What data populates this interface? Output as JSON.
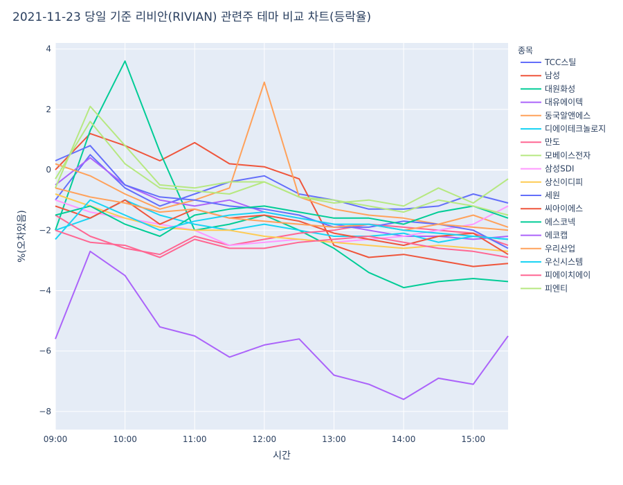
{
  "chart_data": {
    "type": "line",
    "title": "2021-11-23 당일 기준 리비안(RIVIAN) 관련주 테마 비교 차트(등락율)",
    "xlabel": "시간",
    "ylabel": "%(오차있음)",
    "legend_title": "종목",
    "legend_position": "right",
    "grid": true,
    "x_ticks": [
      "09:00",
      "10:00",
      "11:00",
      "12:00",
      "13:00",
      "14:00",
      "15:00"
    ],
    "x_range": [
      "09:00",
      "15:30"
    ],
    "y_ticks": [
      -8,
      -6,
      -4,
      -2,
      0,
      2,
      4
    ],
    "y_range": [
      -8.6,
      4.2
    ],
    "x": [
      "09:00",
      "09:30",
      "10:00",
      "10:30",
      "11:00",
      "11:30",
      "12:00",
      "12:30",
      "13:00",
      "13:30",
      "14:00",
      "14:30",
      "15:00",
      "15:30"
    ],
    "series": [
      {
        "name": "TCC스틸",
        "color": "#636efa",
        "values": [
          -1.0,
          0.5,
          -0.6,
          -1.2,
          -0.8,
          -0.4,
          -0.2,
          -0.8,
          -1.0,
          -1.3,
          -1.3,
          -1.2,
          -0.8,
          -1.1
        ]
      },
      {
        "name": "남성",
        "color": "#EF553B",
        "values": [
          0.0,
          1.2,
          0.8,
          0.3,
          0.9,
          0.2,
          0.1,
          -0.3,
          -2.5,
          -2.9,
          -2.8,
          -3.0,
          -3.2,
          -3.1
        ]
      },
      {
        "name": "대원화성",
        "color": "#00cc96",
        "values": [
          -2.0,
          1.3,
          3.6,
          0.6,
          -2.0,
          -1.8,
          -1.5,
          -2.0,
          -2.6,
          -3.4,
          -3.9,
          -3.7,
          -3.6,
          -3.7
        ]
      },
      {
        "name": "대유에이텍",
        "color": "#ab63fa",
        "values": [
          -0.5,
          0.4,
          -0.5,
          -1.0,
          -1.2,
          -1.0,
          -1.4,
          -1.6,
          -1.8,
          -2.0,
          -2.2,
          -2.2,
          -2.3,
          -2.2
        ]
      },
      {
        "name": "동국알앤에스",
        "color": "#FFA15A",
        "values": [
          0.2,
          -0.2,
          -0.8,
          -1.3,
          -1.0,
          -0.6,
          2.9,
          -0.9,
          -1.3,
          -1.5,
          -1.6,
          -1.8,
          -1.5,
          -1.9
        ]
      },
      {
        "name": "디에이테크놀로지",
        "color": "#19d3f3",
        "values": [
          -2.0,
          -1.6,
          -1.0,
          -1.5,
          -1.8,
          -2.0,
          -1.8,
          -2.0,
          -2.2,
          -2.2,
          -2.1,
          -2.4,
          -2.2,
          -2.3
        ]
      },
      {
        "name": "만도",
        "color": "#FF6692",
        "values": [
          -1.5,
          -2.2,
          -2.6,
          -2.8,
          -2.2,
          -2.5,
          -2.3,
          -2.1,
          -2.0,
          -1.8,
          -1.9,
          -2.0,
          -2.1,
          -2.5
        ]
      },
      {
        "name": "모베이스전자",
        "color": "#B6E880",
        "values": [
          -0.6,
          2.1,
          0.8,
          -0.5,
          -0.6,
          -0.4,
          -0.4,
          -0.9,
          -1.1,
          -1.0,
          -1.2,
          -0.6,
          -1.1,
          -0.3
        ]
      },
      {
        "name": "삼성SDI",
        "color": "#FF97FF",
        "values": [
          -1.0,
          -1.4,
          -1.6,
          -1.8,
          -2.0,
          -2.5,
          -2.4,
          -2.3,
          -2.4,
          -2.3,
          -2.2,
          -2.0,
          -1.8,
          -1.2
        ]
      },
      {
        "name": "상신이디피",
        "color": "#FECB52",
        "values": [
          -0.8,
          -1.2,
          -1.6,
          -1.9,
          -2.0,
          -2.0,
          -2.2,
          -2.3,
          -2.4,
          -2.5,
          -2.6,
          -2.5,
          -2.6,
          -2.7
        ]
      },
      {
        "name": "세원",
        "color": "#636efa",
        "values": [
          0.3,
          0.8,
          -0.5,
          -0.9,
          -1.0,
          -1.2,
          -1.3,
          -1.5,
          -1.9,
          -1.9,
          -1.7,
          -1.8,
          -2.0,
          -2.6
        ]
      },
      {
        "name": "씨아이에스",
        "color": "#EF553B",
        "values": [
          -1.2,
          -1.6,
          -1.0,
          -1.8,
          -1.3,
          -1.6,
          -1.5,
          -1.7,
          -2.1,
          -2.3,
          -2.5,
          -2.2,
          -2.1,
          -2.8
        ]
      },
      {
        "name": "에스코넥",
        "color": "#00cc96",
        "values": [
          -1.5,
          -1.2,
          -1.8,
          -2.2,
          -1.5,
          -1.3,
          -1.2,
          -1.4,
          -1.6,
          -1.6,
          -1.8,
          -1.4,
          -1.2,
          -1.6
        ]
      },
      {
        "name": "에코캡",
        "color": "#ab63fa",
        "values": [
          -5.6,
          -2.7,
          -3.5,
          -5.2,
          -5.5,
          -6.2,
          -5.8,
          -5.6,
          -6.8,
          -7.1,
          -7.6,
          -6.9,
          -7.1,
          -5.5
        ]
      },
      {
        "name": "우리산업",
        "color": "#FFA15A",
        "values": [
          -0.6,
          -0.9,
          -1.1,
          -1.4,
          -1.3,
          -1.6,
          -1.7,
          -1.8,
          -1.9,
          -1.8,
          -2.0,
          -1.8,
          -1.9,
          -2.0
        ]
      },
      {
        "name": "우신시스템",
        "color": "#19d3f3",
        "values": [
          -2.3,
          -1.0,
          -1.5,
          -2.0,
          -1.7,
          -1.5,
          -1.4,
          -1.6,
          -1.8,
          -1.8,
          -2.0,
          -2.1,
          -2.2,
          -2.3
        ]
      },
      {
        "name": "피에이치에이",
        "color": "#FF6692",
        "values": [
          -2.0,
          -2.4,
          -2.5,
          -2.9,
          -2.3,
          -2.6,
          -2.6,
          -2.4,
          -2.3,
          -2.2,
          -2.4,
          -2.6,
          -2.7,
          -2.9
        ]
      },
      {
        "name": "피엔티",
        "color": "#B6E880",
        "values": [
          -0.3,
          1.6,
          0.2,
          -0.6,
          -0.7,
          -0.8,
          -0.4,
          -0.9,
          -1.0,
          -1.2,
          -1.4,
          -1.0,
          -1.2,
          -1.5
        ]
      }
    ]
  }
}
